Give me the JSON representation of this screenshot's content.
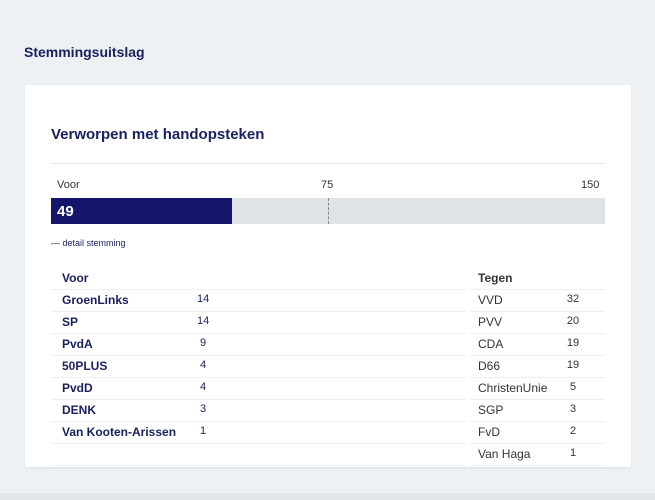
{
  "page": {
    "title": "Stemmingsuitslag"
  },
  "result": {
    "title": "Verworpen met handopsteken",
    "scale": {
      "label": "Voor",
      "mid": "75",
      "max": "150"
    },
    "bar": {
      "value": "49",
      "value_num": 49,
      "max_num": 150,
      "fill_color": "#15166b",
      "track_color": "#dde3e7"
    },
    "detail_link": "— detail stemming"
  },
  "voor": {
    "header": "Voor",
    "rows": [
      {
        "party": "GroenLinks",
        "seats": "14"
      },
      {
        "party": "SP",
        "seats": "14"
      },
      {
        "party": "PvdA",
        "seats": "9"
      },
      {
        "party": "50PLUS",
        "seats": "4"
      },
      {
        "party": "PvdD",
        "seats": "4"
      },
      {
        "party": "DENK",
        "seats": "3"
      },
      {
        "party": "Van Kooten-Arissen",
        "seats": "1"
      }
    ]
  },
  "tegen": {
    "header": "Tegen",
    "rows": [
      {
        "party": "VVD",
        "seats": "32"
      },
      {
        "party": "PVV",
        "seats": "20"
      },
      {
        "party": "CDA",
        "seats": "19"
      },
      {
        "party": "D66",
        "seats": "19"
      },
      {
        "party": "ChristenUnie",
        "seats": "5"
      },
      {
        "party": "SGP",
        "seats": "3"
      },
      {
        "party": "FvD",
        "seats": "2"
      },
      {
        "party": "Van Haga",
        "seats": "1"
      }
    ]
  }
}
